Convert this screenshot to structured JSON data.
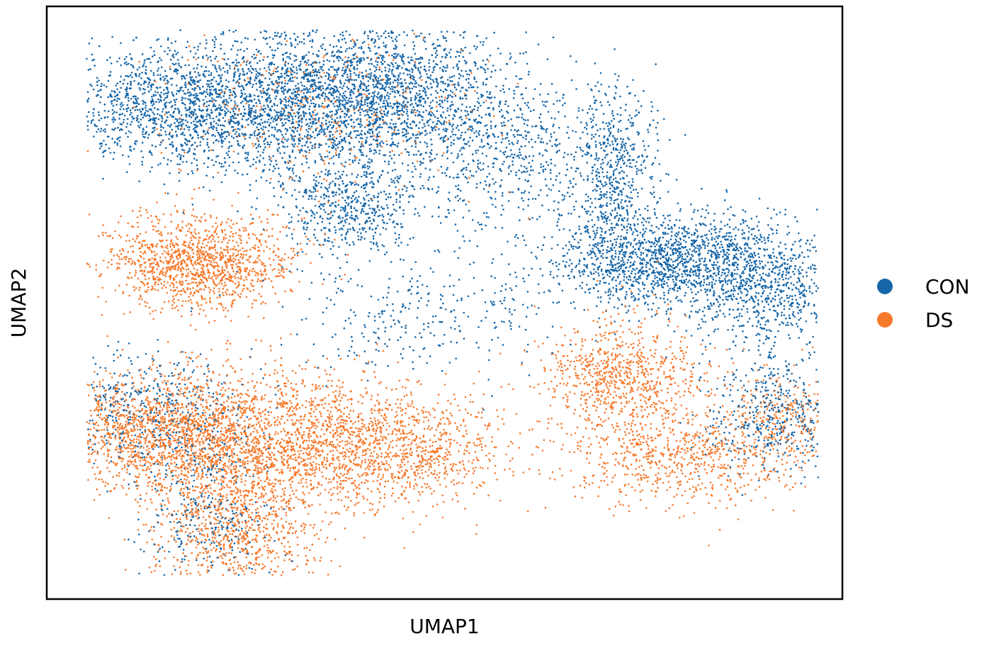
{
  "chart_data": {
    "type": "scatter",
    "title": "",
    "xlabel": "UMAP1",
    "ylabel": "UMAP2",
    "ticks": "none",
    "grid": false,
    "legend_position": "right",
    "series": [
      {
        "name": "CON",
        "color": "#1666a8"
      },
      {
        "name": "DS",
        "color": "#f7792b"
      }
    ],
    "clusters": [
      {
        "series": "CON",
        "cx": 0.17,
        "cy": 0.83,
        "sx": 0.08,
        "sy": 0.05,
        "n": 1400
      },
      {
        "series": "CON",
        "cx": 0.33,
        "cy": 0.84,
        "sx": 0.09,
        "sy": 0.07,
        "n": 1700
      },
      {
        "series": "CON",
        "cx": 0.44,
        "cy": 0.86,
        "sx": 0.07,
        "sy": 0.06,
        "n": 1100
      },
      {
        "series": "CON",
        "cx": 0.38,
        "cy": 0.66,
        "sx": 0.04,
        "sy": 0.04,
        "n": 500
      },
      {
        "series": "CON",
        "cx": 0.56,
        "cy": 0.76,
        "sx": 0.06,
        "sy": 0.07,
        "n": 600
      },
      {
        "series": "CON",
        "cx": 0.71,
        "cy": 0.72,
        "sx": 0.03,
        "sy": 0.08,
        "n": 650
      },
      {
        "series": "CON",
        "cx": 0.77,
        "cy": 0.57,
        "sx": 0.07,
        "sy": 0.04,
        "n": 1400
      },
      {
        "series": "CON",
        "cx": 0.9,
        "cy": 0.53,
        "sx": 0.05,
        "sy": 0.05,
        "n": 800
      },
      {
        "series": "CON",
        "cx": 0.92,
        "cy": 0.31,
        "sx": 0.05,
        "sy": 0.05,
        "n": 500
      },
      {
        "series": "CON",
        "cx": 0.13,
        "cy": 0.32,
        "sx": 0.06,
        "sy": 0.05,
        "n": 500
      },
      {
        "series": "CON",
        "cx": 0.2,
        "cy": 0.14,
        "sx": 0.04,
        "sy": 0.06,
        "n": 300
      },
      {
        "series": "CON",
        "cx": 0.47,
        "cy": 0.48,
        "sx": 0.08,
        "sy": 0.05,
        "n": 300
      },
      {
        "series": "DS",
        "cx": 0.19,
        "cy": 0.57,
        "sx": 0.06,
        "sy": 0.04,
        "n": 1300
      },
      {
        "series": "DS",
        "cx": 0.15,
        "cy": 0.28,
        "sx": 0.07,
        "sy": 0.05,
        "n": 1600
      },
      {
        "series": "DS",
        "cx": 0.3,
        "cy": 0.27,
        "sx": 0.08,
        "sy": 0.06,
        "n": 1400
      },
      {
        "series": "DS",
        "cx": 0.24,
        "cy": 0.11,
        "sx": 0.05,
        "sy": 0.06,
        "n": 900
      },
      {
        "series": "DS",
        "cx": 0.45,
        "cy": 0.25,
        "sx": 0.07,
        "sy": 0.05,
        "n": 900
      },
      {
        "series": "DS",
        "cx": 0.72,
        "cy": 0.38,
        "sx": 0.05,
        "sy": 0.05,
        "n": 800
      },
      {
        "series": "DS",
        "cx": 0.8,
        "cy": 0.24,
        "sx": 0.07,
        "sy": 0.04,
        "n": 700
      },
      {
        "series": "DS",
        "cx": 0.93,
        "cy": 0.3,
        "sx": 0.05,
        "sy": 0.04,
        "n": 300
      },
      {
        "series": "DS",
        "cx": 0.33,
        "cy": 0.82,
        "sx": 0.1,
        "sy": 0.07,
        "n": 350
      }
    ]
  }
}
